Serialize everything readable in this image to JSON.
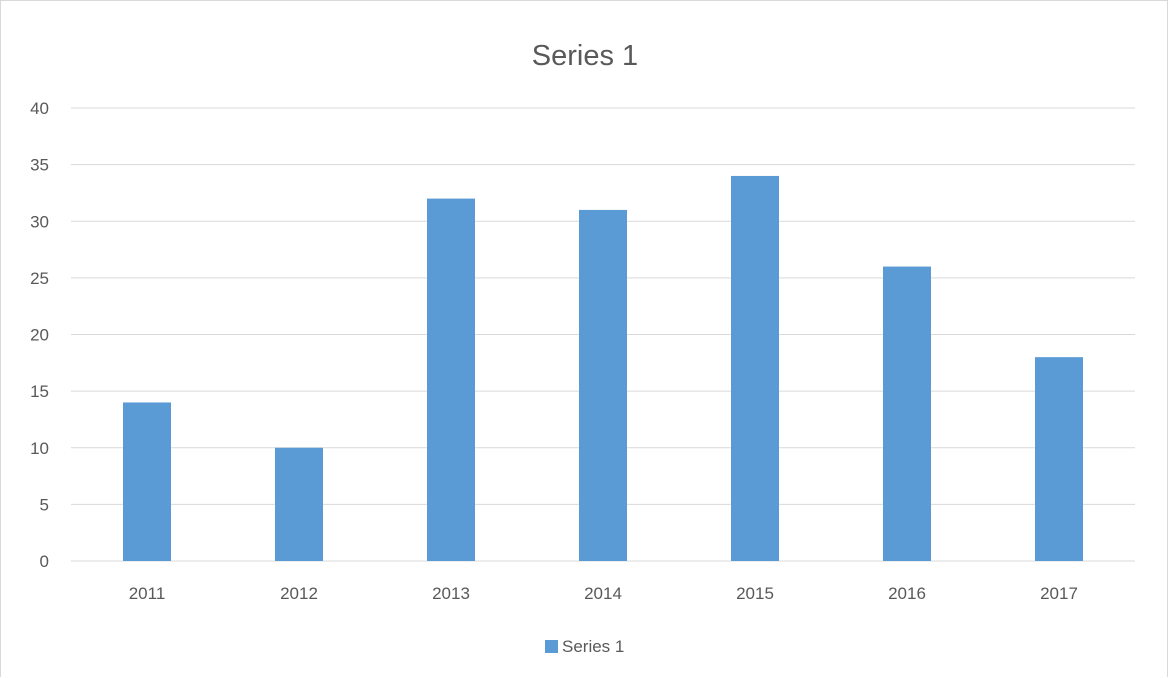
{
  "chart_data": {
    "type": "bar",
    "title": "Series 1",
    "categories": [
      "2011",
      "2012",
      "2013",
      "2014",
      "2015",
      "2016",
      "2017"
    ],
    "series": [
      {
        "name": "Series 1",
        "values": [
          14,
          10,
          32,
          31,
          34,
          26,
          18
        ],
        "color": "#5b9bd5"
      }
    ],
    "ylim": [
      0,
      40
    ],
    "yticks": [
      "0",
      "5",
      "10",
      "15",
      "20",
      "25",
      "30",
      "35",
      "40"
    ],
    "xlabel": "",
    "ylabel": "",
    "grid": true,
    "legend_position": "bottom"
  },
  "colors": {
    "gridline": "#d9d9d9",
    "text": "#595959",
    "frame": "#d9d9d9"
  }
}
